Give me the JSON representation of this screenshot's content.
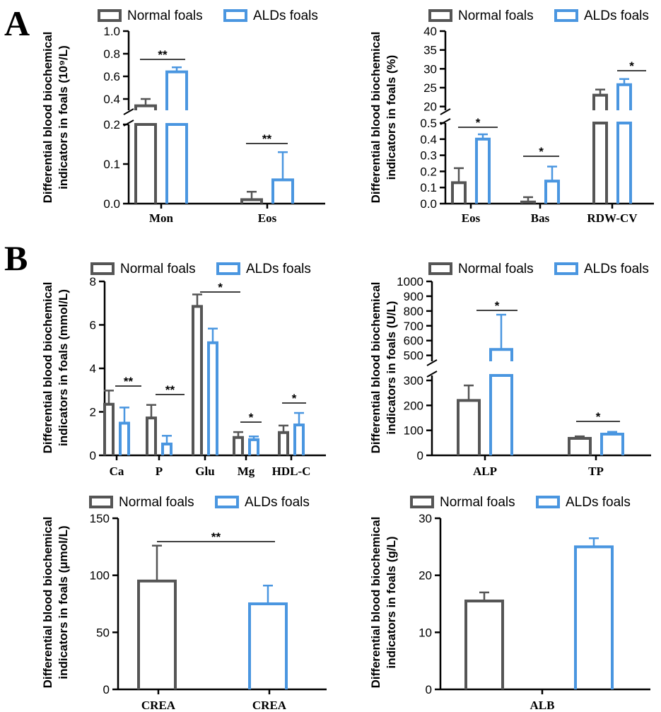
{
  "panel_labels": [
    "A",
    "B"
  ],
  "legend": {
    "normal": "Normal foals",
    "alds": "ALDs foals"
  },
  "colors": {
    "normal": "#555555",
    "alds": "#4a96e0",
    "axis": "#000000"
  },
  "chart_data": [
    {
      "id": "a1",
      "type": "bar",
      "ylabel": [
        "Differential blood biochemical",
        "indicators in foals (10⁹/L)"
      ],
      "categories": [
        "Mon",
        "Eos"
      ],
      "series": [
        {
          "name": "Normal foals",
          "values": [
            0.34,
            0.01
          ],
          "errors": [
            0.06,
            0.02
          ]
        },
        {
          "name": "ALDs foals",
          "values": [
            0.64,
            0.06
          ],
          "errors": [
            0.04,
            0.07
          ]
        }
      ],
      "segments": [
        {
          "range": [
            0,
            0.2
          ],
          "ticks": [
            "0.0",
            "0.1",
            "0.2"
          ]
        },
        {
          "range": [
            0.3,
            1.0
          ],
          "ticks": [
            "0.4",
            "0.6",
            "0.8",
            "1.0"
          ]
        }
      ],
      "significance": [
        "**",
        "**"
      ]
    },
    {
      "id": "a2",
      "type": "bar",
      "ylabel": [
        "Differential blood biochemical",
        "indicators in foals (%)"
      ],
      "categories": [
        "Eos",
        "Bas",
        "RDW-CV"
      ],
      "series": [
        {
          "name": "Normal foals",
          "values": [
            0.13,
            0.01,
            23.0
          ],
          "errors": [
            0.09,
            0.03,
            1.5
          ]
        },
        {
          "name": "ALDs foals",
          "values": [
            0.4,
            0.14,
            25.8
          ],
          "errors": [
            0.03,
            0.09,
            1.5
          ]
        }
      ],
      "segments": [
        {
          "range": [
            0,
            0.5
          ],
          "ticks": [
            "0.0",
            "0.1",
            "0.2",
            "0.3",
            "0.4",
            "0.5"
          ]
        },
        {
          "range": [
            19,
            40
          ],
          "ticks": [
            "20",
            "25",
            "30",
            "35",
            "40"
          ]
        }
      ],
      "significance": [
        "*",
        "*",
        "*"
      ]
    },
    {
      "id": "b1",
      "type": "bar",
      "ylabel": [
        "Differential blood biochemical",
        "indicators in foals (mmol/L)"
      ],
      "categories": [
        "Ca",
        "P",
        "Glu",
        "Mg",
        "HDL-C"
      ],
      "series": [
        {
          "name": "Normal foals",
          "values": [
            2.35,
            1.72,
            6.85,
            0.82,
            1.05
          ],
          "errors": [
            0.63,
            0.6,
            0.55,
            0.25,
            0.32
          ]
        },
        {
          "name": "ALDs foals",
          "values": [
            1.48,
            0.52,
            5.18,
            0.72,
            1.4
          ],
          "errors": [
            0.72,
            0.38,
            0.65,
            0.15,
            0.55
          ]
        }
      ],
      "ylim": [
        0,
        8
      ],
      "ticks": [
        "0",
        "2",
        "4",
        "6",
        "8"
      ],
      "significance": [
        "**",
        "**",
        "*",
        "*",
        "*"
      ]
    },
    {
      "id": "b2",
      "type": "bar",
      "ylabel": [
        "Differential blood biochemical",
        "indicators in foals (U/L)"
      ],
      "categories": [
        "ALP",
        "TP"
      ],
      "series": [
        {
          "name": "Normal foals",
          "values": [
            220,
            68
          ],
          "errors": [
            60,
            8
          ]
        },
        {
          "name": "ALDs foals",
          "values": [
            540,
            85
          ],
          "errors": [
            235,
            9
          ]
        }
      ],
      "segments": [
        {
          "range": [
            0,
            320
          ],
          "ticks": [
            "0",
            "100",
            "200",
            "300"
          ]
        },
        {
          "range": [
            460,
            1000
          ],
          "ticks": [
            "500",
            "600",
            "700",
            "800",
            "900",
            "1000"
          ]
        }
      ],
      "significance": [
        "*",
        "*"
      ]
    },
    {
      "id": "b3",
      "type": "bar",
      "ylabel": [
        "Differential blood biochemical",
        "indicators in foals (μmol/L)"
      ],
      "categories": [
        "CREA",
        "CREA"
      ],
      "series": [
        {
          "name": "Normal foals",
          "values": [
            95,
            null
          ],
          "errors": [
            31,
            null
          ]
        },
        {
          "name": "ALDs foals",
          "values": [
            null,
            75
          ],
          "errors": [
            null,
            16
          ]
        }
      ],
      "ylim": [
        0,
        150
      ],
      "ticks": [
        "0",
        "50",
        "100",
        "150"
      ],
      "significance": [
        "**"
      ]
    },
    {
      "id": "b4",
      "type": "bar",
      "ylabel": [
        "Differential blood biochemical",
        "indicators in foals (g/L)"
      ],
      "categories": [
        "ALB"
      ],
      "series": [
        {
          "name": "Normal foals",
          "values": [
            15.5
          ],
          "errors": [
            1.5
          ]
        },
        {
          "name": "ALDs foals",
          "values": [
            25
          ],
          "errors": [
            1.5
          ]
        }
      ],
      "ylim": [
        0,
        30
      ],
      "ticks": [
        "0",
        "10",
        "20",
        "30"
      ],
      "significance": []
    }
  ]
}
